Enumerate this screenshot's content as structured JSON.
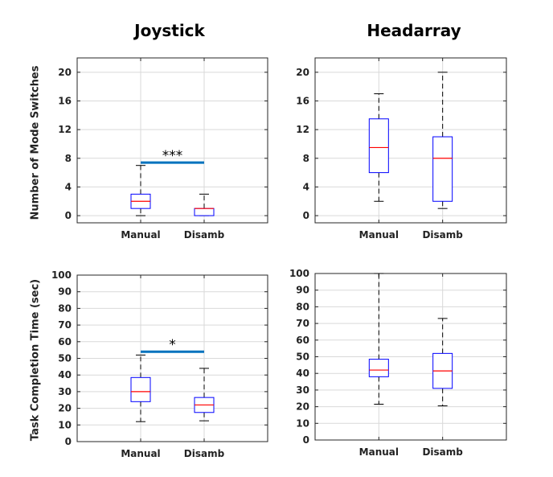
{
  "columns": {
    "left_title": "Joystick",
    "right_title": "Headarray"
  },
  "row_labels": {
    "top": "Number of Mode Switches",
    "bottom": "Task Completion Time (sec)"
  },
  "colors": {
    "box": "#0000ff",
    "median": "#ff0000",
    "whisker": "#000000",
    "grid": "#d9d9d9",
    "significance_bar": "#0072bd"
  },
  "chart_data": [
    {
      "type": "box",
      "panel": "Joystick - Number of Mode Switches",
      "title": "Joystick",
      "ylabel": "Number of Mode Switches",
      "categories": [
        "Manual",
        "Disamb"
      ],
      "ylim": [
        -1,
        22
      ],
      "yticks": [
        0,
        4,
        8,
        12,
        16,
        20
      ],
      "grid": true,
      "boxes": [
        {
          "name": "Manual",
          "min": 0,
          "q1": 1,
          "median": 2,
          "q3": 3,
          "max": 7
        },
        {
          "name": "Disamb",
          "min": 0,
          "q1": 0,
          "median": 1,
          "q3": 1,
          "max": 3
        }
      ],
      "significance": {
        "label": "***",
        "from": "Manual",
        "to": "Disamb",
        "y": 7.4
      }
    },
    {
      "type": "box",
      "panel": "Headarray - Number of Mode Switches",
      "title": "Headarray",
      "ylabel": "",
      "categories": [
        "Manual",
        "Disamb"
      ],
      "ylim": [
        -1,
        22
      ],
      "yticks": [
        0,
        4,
        8,
        12,
        16,
        20
      ],
      "grid": true,
      "boxes": [
        {
          "name": "Manual",
          "min": 2,
          "q1": 6,
          "median": 9.5,
          "q3": 13.5,
          "max": 17
        },
        {
          "name": "Disamb",
          "min": 1,
          "q1": 2,
          "median": 8,
          "q3": 11,
          "max": 20
        }
      ]
    },
    {
      "type": "box",
      "panel": "Joystick - Task Completion Time (sec)",
      "title": "",
      "ylabel": "Task Completion Time (sec)",
      "categories": [
        "Manual",
        "Disamb"
      ],
      "ylim": [
        0,
        100
      ],
      "yticks": [
        0,
        10,
        20,
        30,
        40,
        50,
        60,
        70,
        80,
        90,
        100
      ],
      "grid": true,
      "boxes": [
        {
          "name": "Manual",
          "min": 12,
          "q1": 24,
          "median": 30,
          "q3": 38.5,
          "max": 52
        },
        {
          "name": "Disamb",
          "min": 12.5,
          "q1": 17.5,
          "median": 22,
          "q3": 26.5,
          "max": 44
        }
      ],
      "significance": {
        "label": "*",
        "from": "Manual",
        "to": "Disamb",
        "y": 54
      }
    },
    {
      "type": "box",
      "panel": "Headarray - Task Completion Time (sec)",
      "title": "",
      "ylabel": "",
      "categories": [
        "Manual",
        "Disamb"
      ],
      "ylim": [
        0,
        100
      ],
      "yticks": [
        0,
        10,
        20,
        30,
        40,
        50,
        60,
        70,
        80,
        90,
        100
      ],
      "grid": true,
      "boxes": [
        {
          "name": "Manual",
          "min": 21.5,
          "q1": 38,
          "median": 42,
          "q3": 48.5,
          "max": 100
        },
        {
          "name": "Disamb",
          "min": 20.5,
          "q1": 31,
          "median": 41.5,
          "q3": 52,
          "max": 73
        }
      ]
    }
  ]
}
